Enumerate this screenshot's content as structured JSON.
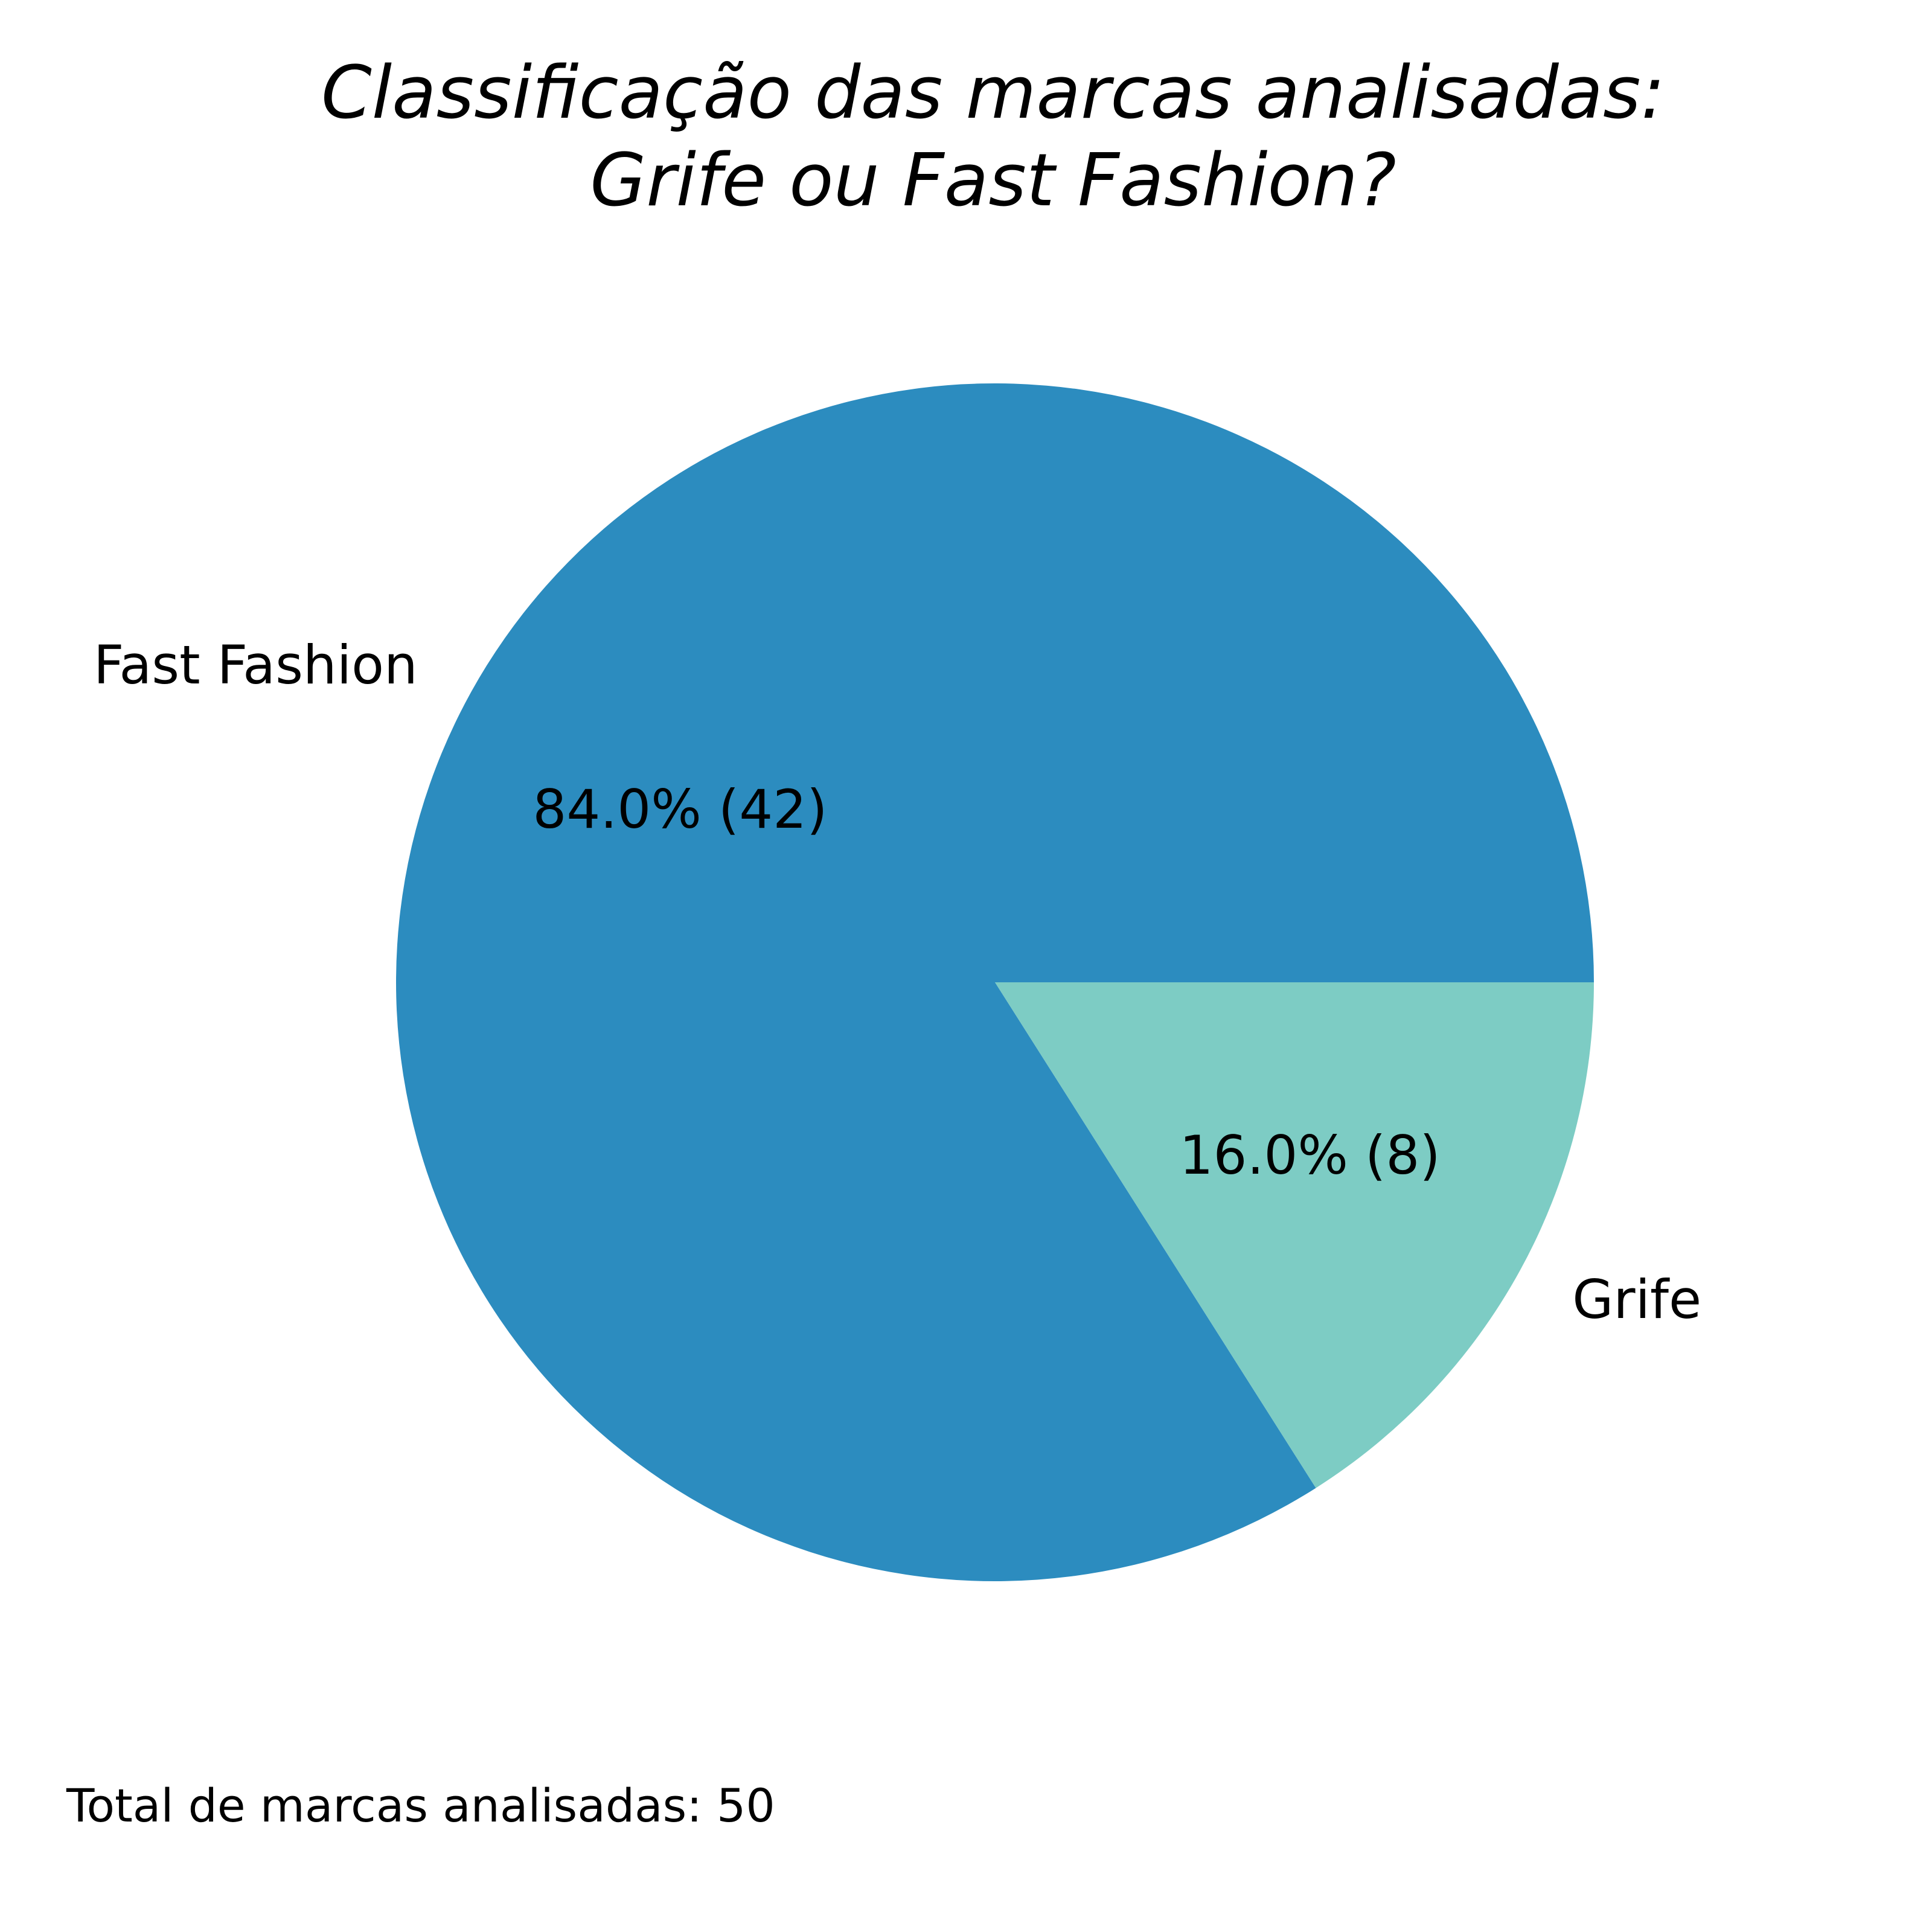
{
  "chart_data": {
    "type": "pie",
    "title_lines": [
      "Classificação das marcas analisadas:",
      "Grife ou Fast Fashion?"
    ],
    "slices": [
      {
        "label": "Fast Fashion",
        "value": 42,
        "percent_label": "84.0% (42)",
        "color": "#2c8cbf"
      },
      {
        "label": "Grife",
        "value": 8,
        "percent_label": "16.0% (8)",
        "color": "#7dccc4"
      }
    ],
    "total": 50,
    "footnote": "Total de marcas analisadas: 50"
  }
}
